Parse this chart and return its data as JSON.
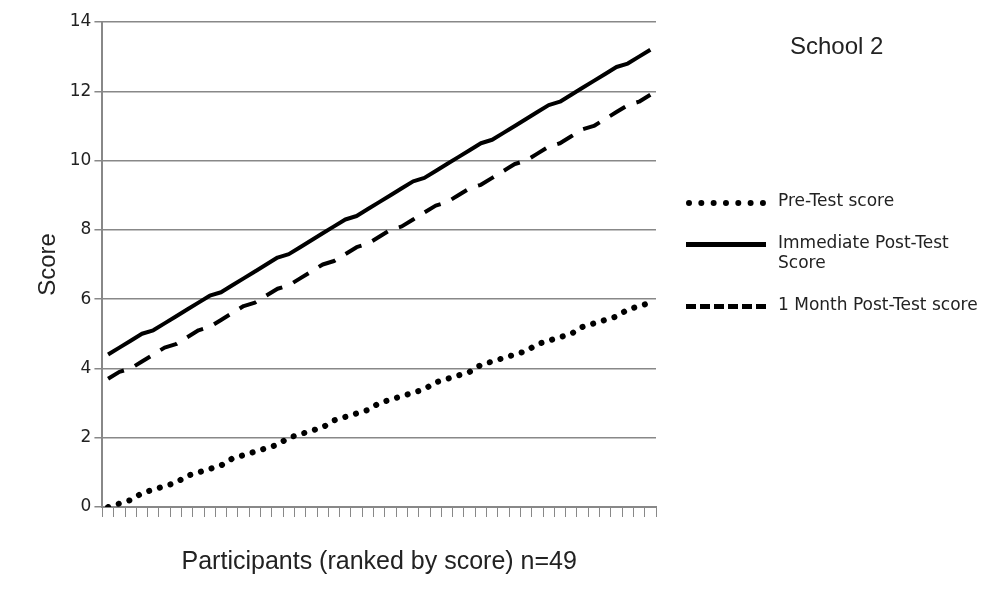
{
  "chart_data": {
    "type": "line",
    "title": "School 2",
    "xlabel": "Participants (ranked by score) n=49",
    "ylabel": "Score",
    "categories": [
      null,
      null,
      null,
      null,
      null,
      null,
      null,
      null,
      null,
      null,
      null,
      null,
      null,
      null,
      null,
      null,
      null,
      null,
      null,
      null,
      null,
      null,
      null,
      null,
      null,
      null,
      null,
      null,
      null,
      null,
      null,
      null,
      null,
      null,
      null,
      null,
      null,
      null,
      null,
      null,
      null,
      null,
      null,
      null,
      null,
      null,
      null,
      null,
      null
    ],
    "series": [
      {
        "name": "Pre-Test score",
        "color": "#000000",
        "line_style": "dotted",
        "values": [
          0,
          0.1,
          0.2,
          0.4,
          0.5,
          0.6,
          0.7,
          0.9,
          1.0,
          1.1,
          1.2,
          1.4,
          1.5,
          1.6,
          1.7,
          1.8,
          2.0,
          2.1,
          2.2,
          2.3,
          2.5,
          2.6,
          2.7,
          2.8,
          3.0,
          3.1,
          3.2,
          3.3,
          3.4,
          3.6,
          3.7,
          3.8,
          3.9,
          4.1,
          4.2,
          4.3,
          4.4,
          4.5,
          4.7,
          4.8,
          4.9,
          5.0,
          5.2,
          5.3,
          5.4,
          5.5,
          5.7,
          5.8,
          5.9
        ]
      },
      {
        "name": "Immediate Post-Test Score",
        "color": "#000000",
        "line_style": "solid",
        "values": [
          4.4,
          4.6,
          4.8,
          5.0,
          5.1,
          5.3,
          5.5,
          5.7,
          5.9,
          6.1,
          6.2,
          6.4,
          6.6,
          6.8,
          7.0,
          7.2,
          7.3,
          7.5,
          7.7,
          7.9,
          8.1,
          8.3,
          8.4,
          8.6,
          8.8,
          9.0,
          9.2,
          9.4,
          9.5,
          9.7,
          9.9,
          10.1,
          10.3,
          10.5,
          10.6,
          10.8,
          11.0,
          11.2,
          11.4,
          11.6,
          11.7,
          11.9,
          12.1,
          12.3,
          12.5,
          12.7,
          12.8,
          13.0,
          13.2
        ]
      },
      {
        "name": "1 Month Post-Test score",
        "color": "#000000",
        "line_style": "dashed",
        "values": [
          3.7,
          3.9,
          4.0,
          4.2,
          4.4,
          4.6,
          4.7,
          4.9,
          5.1,
          5.2,
          5.4,
          5.6,
          5.8,
          5.9,
          6.1,
          6.3,
          6.4,
          6.6,
          6.8,
          7.0,
          7.1,
          7.3,
          7.5,
          7.6,
          7.8,
          8.0,
          8.1,
          8.3,
          8.5,
          8.7,
          8.8,
          9.0,
          9.2,
          9.3,
          9.5,
          9.7,
          9.9,
          10.0,
          10.2,
          10.4,
          10.5,
          10.7,
          10.9,
          11.0,
          11.2,
          11.4,
          11.6,
          11.7,
          11.9
        ]
      }
    ],
    "ylim": [
      0,
      14
    ],
    "yticks": [
      0,
      2,
      4,
      6,
      8,
      10,
      12,
      14
    ],
    "grid": "y",
    "legend": "right",
    "tick_labels": "y",
    "marker": "none"
  }
}
